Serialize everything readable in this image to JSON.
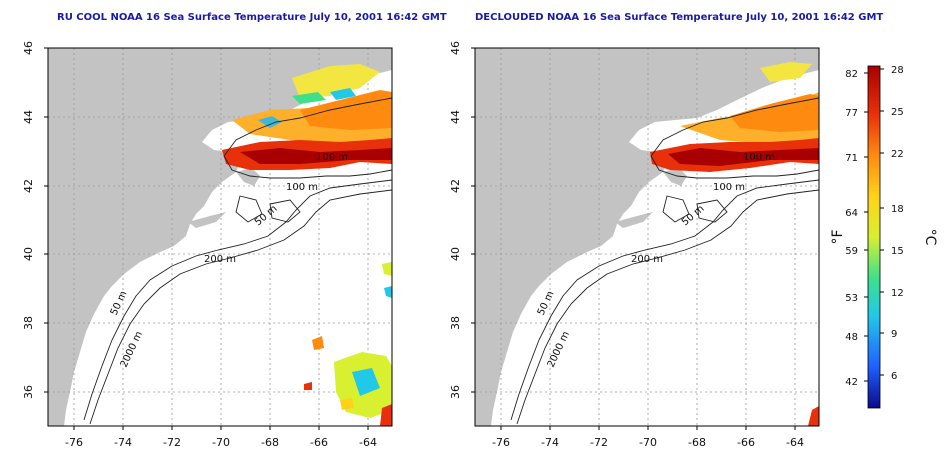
{
  "panels": [
    {
      "title": "RU COOL NOAA 16 Sea Surface Temperature July 10, 2001 16:42 GMT",
      "contour_labels": [
        "100 m",
        "100 m",
        "50 m",
        "200 m",
        "50 m",
        "2000 m"
      ]
    },
    {
      "title": "DECLOUDED NOAA 16 Sea Surface Temperature July 10, 2001 16:42 GMT",
      "contour_labels": [
        "100 m",
        "100 m",
        "50 m",
        "200 m",
        "50 m",
        "2000 m"
      ]
    }
  ],
  "axes": {
    "longitude_ticks": [
      "-76",
      "-74",
      "-72",
      "-70",
      "-68",
      "-66",
      "-64"
    ],
    "latitude_ticks": [
      "46",
      "44",
      "42",
      "40",
      "38",
      "36"
    ]
  },
  "colorbar": {
    "fahrenheit_ticks": [
      "82",
      "77",
      "71",
      "64",
      "59",
      "53",
      "48",
      "42"
    ],
    "celsius_ticks": [
      "28",
      "25",
      "22",
      "18",
      "15",
      "12",
      "9",
      "6"
    ],
    "fahrenheit_label": "°F",
    "celsius_label": "°C",
    "colors": [
      "#0a0a8a",
      "#1f5fff",
      "#22c8e8",
      "#3fe08a",
      "#d8f030",
      "#ffd21a",
      "#ff8a10",
      "#e8300a",
      "#a80000"
    ]
  },
  "colors": {
    "land": "#c3c3c3",
    "ocean": "#ffffff",
    "title": "#1a1aa8"
  }
}
